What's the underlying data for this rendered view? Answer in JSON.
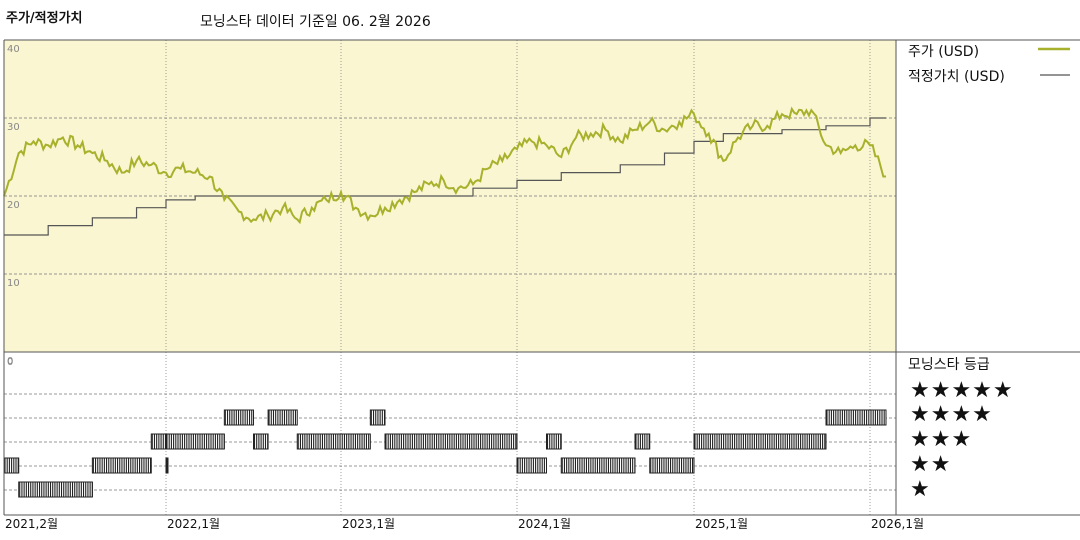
{
  "header": {
    "left_title": "주가/적정가치",
    "main_title": "모닝스타 데이터 기준일 06. 2월 2026"
  },
  "legend": {
    "price_label": "주가 (USD)",
    "fair_label": "적정가치 (USD)",
    "rating_title": "모닝스타 등급",
    "stars": [
      "★★★★★",
      "★★★★",
      "★★★",
      "★★",
      "★"
    ]
  },
  "colors": {
    "price": "#a8b12c",
    "fair": "#555555",
    "plot_bg": "#faf6d2",
    "rating_bar": "#222222"
  },
  "chart_data": {
    "type": "line",
    "x_range": [
      "2021-02",
      "2026-02"
    ],
    "ylim": [
      0,
      40
    ],
    "yticks": [
      0,
      10,
      20,
      30,
      40
    ],
    "lower_yticks": [
      0
    ],
    "xtick_labels": [
      "2021,2월",
      "2022,1월",
      "2023,1월",
      "2024,1월",
      "2025,1월",
      "2026,1월"
    ],
    "series": [
      {
        "name": "주가 (USD)",
        "points": [
          [
            "2021-02",
            20.0
          ],
          [
            "2021-03",
            25.5
          ],
          [
            "2021-04",
            27.0
          ],
          [
            "2021-05",
            26.5
          ],
          [
            "2021-06",
            27.5
          ],
          [
            "2021-07",
            26.5
          ],
          [
            "2021-08",
            25.5
          ],
          [
            "2021-09",
            24.5
          ],
          [
            "2021-10",
            23.0
          ],
          [
            "2021-11",
            24.5
          ],
          [
            "2021-12",
            24.0
          ],
          [
            "2022-01",
            23.0
          ],
          [
            "2022-02",
            23.5
          ],
          [
            "2022-03",
            23.0
          ],
          [
            "2022-04",
            22.5
          ],
          [
            "2022-05",
            19.5
          ],
          [
            "2022-06",
            18.0
          ],
          [
            "2022-07",
            17.0
          ],
          [
            "2022-08",
            17.5
          ],
          [
            "2022-09",
            18.5
          ],
          [
            "2022-10",
            17.0
          ],
          [
            "2022-11",
            18.5
          ],
          [
            "2022-12",
            19.5
          ],
          [
            "2023-01",
            20.5
          ],
          [
            "2023-02",
            18.5
          ],
          [
            "2023-03",
            17.5
          ],
          [
            "2023-04",
            18.5
          ],
          [
            "2023-05",
            19.5
          ],
          [
            "2023-06",
            20.5
          ],
          [
            "2023-07",
            21.5
          ],
          [
            "2023-08",
            22.0
          ],
          [
            "2023-09",
            21.0
          ],
          [
            "2023-10",
            21.5
          ],
          [
            "2023-11",
            23.5
          ],
          [
            "2023-12",
            24.5
          ],
          [
            "2024-01",
            26.0
          ],
          [
            "2024-02",
            27.0
          ],
          [
            "2024-03",
            26.5
          ],
          [
            "2024-04",
            25.0
          ],
          [
            "2024-05",
            27.5
          ],
          [
            "2024-06",
            28.0
          ],
          [
            "2024-07",
            28.5
          ],
          [
            "2024-08",
            27.0
          ],
          [
            "2024-09",
            28.5
          ],
          [
            "2024-10",
            29.5
          ],
          [
            "2024-11",
            28.5
          ],
          [
            "2024-12",
            29.5
          ],
          [
            "2025-01",
            30.5
          ],
          [
            "2025-02",
            28.0
          ],
          [
            "2025-03",
            24.5
          ],
          [
            "2025-04",
            27.5
          ],
          [
            "2025-05",
            29.0
          ],
          [
            "2025-06",
            29.0
          ],
          [
            "2025-07",
            30.5
          ],
          [
            "2025-08",
            30.5
          ],
          [
            "2025-09",
            31.0
          ],
          [
            "2025-10",
            26.5
          ],
          [
            "2025-11",
            25.5
          ],
          [
            "2025-12",
            26.5
          ],
          [
            "2026-01",
            26.5
          ],
          [
            "2026-02",
            22.5
          ]
        ]
      },
      {
        "name": "적정가치 (USD)",
        "steps": [
          [
            "2021-02",
            15.0
          ],
          [
            "2021-05",
            16.2
          ],
          [
            "2021-08",
            17.2
          ],
          [
            "2021-11",
            18.5
          ],
          [
            "2022-01",
            19.5
          ],
          [
            "2022-03",
            20.0
          ],
          [
            "2022-10",
            20.0
          ],
          [
            "2023-10",
            21.0
          ],
          [
            "2024-01",
            22.0
          ],
          [
            "2024-04",
            23.0
          ],
          [
            "2024-08",
            24.0
          ],
          [
            "2024-11",
            25.5
          ],
          [
            "2025-01",
            27.0
          ],
          [
            "2025-03",
            28.0
          ],
          [
            "2025-07",
            28.5
          ],
          [
            "2025-10",
            29.0
          ],
          [
            "2026-01",
            30.0
          ],
          [
            "2026-02",
            30.0
          ]
        ]
      }
    ],
    "rating_series": {
      "name": "모닝스타 등급",
      "levels": [
        1,
        2,
        3,
        4,
        5
      ],
      "segments": [
        [
          "2021-02",
          "2021-03",
          2
        ],
        [
          "2021-03",
          "2021-08",
          1
        ],
        [
          "2021-08",
          "2021-12",
          2
        ],
        [
          "2021-12",
          "2022-01",
          3
        ],
        [
          "2022-01",
          "2022-01",
          2
        ],
        [
          "2022-01",
          "2022-05",
          3
        ],
        [
          "2022-05",
          "2022-07",
          4
        ],
        [
          "2022-07",
          "2022-08",
          3
        ],
        [
          "2022-08",
          "2022-10",
          4
        ],
        [
          "2022-10",
          "2023-03",
          3
        ],
        [
          "2023-03",
          "2023-04",
          4
        ],
        [
          "2023-04",
          "2024-01",
          3
        ],
        [
          "2024-01",
          "2024-03",
          2
        ],
        [
          "2024-03",
          "2024-04",
          3
        ],
        [
          "2024-04",
          "2024-09",
          2
        ],
        [
          "2024-09",
          "2024-10",
          3
        ],
        [
          "2024-10",
          "2025-01",
          2
        ],
        [
          "2025-01",
          "2025-10",
          3
        ],
        [
          "2025-10",
          "2026-02",
          4
        ]
      ]
    }
  }
}
